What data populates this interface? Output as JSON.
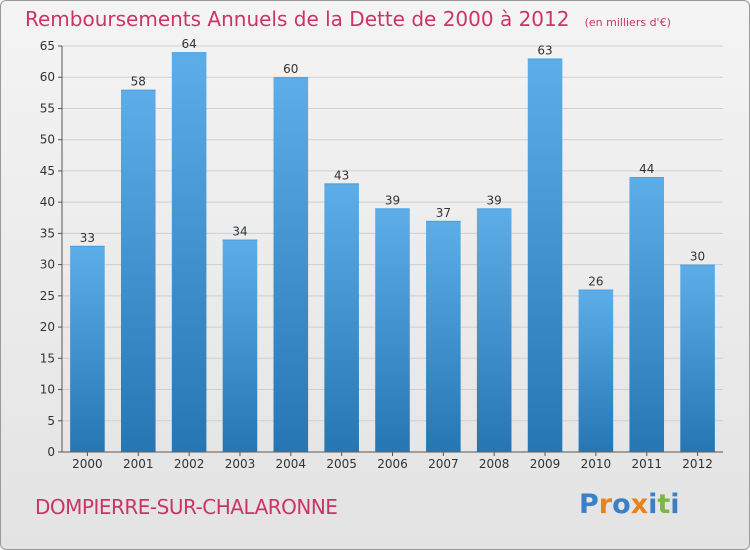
{
  "header": {
    "title": "Remboursements Annuels de la Dette de 2000 à 2012",
    "unit_note": "(en milliers d'€)"
  },
  "footer": {
    "location": "DOMPIERRE-SUR-CHALARONNE",
    "brand": "Proxiti"
  },
  "colors": {
    "title": "#cc3366",
    "bar_top": "#5dade8",
    "bar_bottom": "#2676b4",
    "brand_letters": [
      "#3b7fc4",
      "#e8821e",
      "#3b7fc4",
      "#e8821e",
      "#3b7fc4",
      "#7ab648",
      "#3b7fc4"
    ]
  },
  "chart_data": {
    "type": "bar",
    "categories": [
      "2000",
      "2001",
      "2002",
      "2003",
      "2004",
      "2005",
      "2006",
      "2007",
      "2008",
      "2009",
      "2010",
      "2011",
      "2012"
    ],
    "values": [
      33,
      58,
      64,
      34,
      60,
      43,
      39,
      37,
      39,
      63,
      26,
      44,
      30
    ],
    "ylim": [
      0,
      65
    ],
    "yticks": [
      0,
      5,
      10,
      15,
      20,
      25,
      30,
      35,
      40,
      45,
      50,
      55,
      60,
      65
    ],
    "grid": true,
    "data_labels": true,
    "xlabel": "",
    "ylabel": ""
  }
}
